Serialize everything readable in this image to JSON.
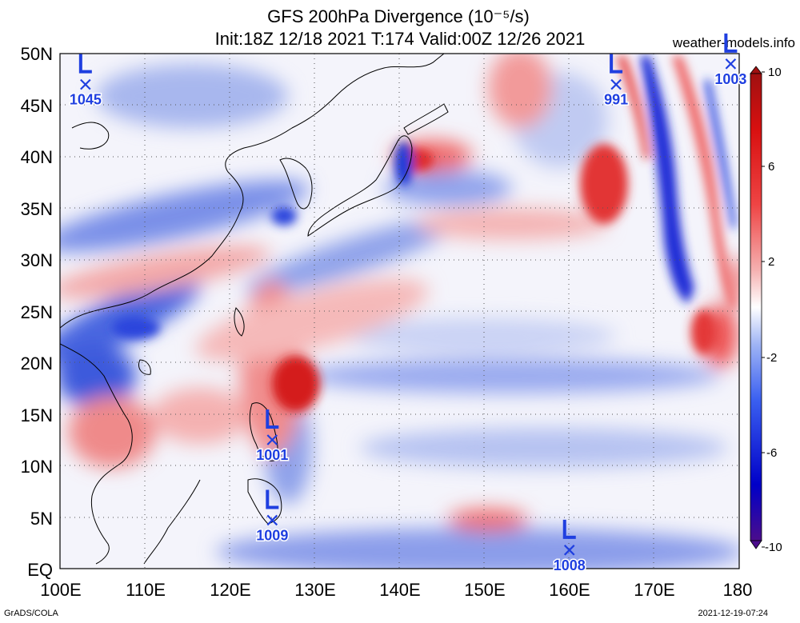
{
  "header": {
    "title_line1": "GFS 200hPa Divergence (10⁻⁵/s)",
    "title_line2": "Init:18Z 12/18 2021 T:174 Valid:00Z 12/26 2021",
    "site": "weather-models.info"
  },
  "footer": {
    "left": "GrADS/COLA",
    "right": "2021-12-19-07:24"
  },
  "map": {
    "lat_labels": [
      "50N",
      "45N",
      "40N",
      "35N",
      "30N",
      "25N",
      "20N",
      "15N",
      "10N",
      "5N",
      "EQ"
    ],
    "lon_labels": [
      "100E",
      "110E",
      "120E",
      "130E",
      "140E",
      "150E",
      "160E",
      "170E",
      "180"
    ]
  },
  "colorbar": {
    "labels": [
      "10",
      "6",
      "2",
      "-2",
      "-6",
      "-10"
    ],
    "colors": [
      "#4b0d8c",
      "#0000c8",
      "#3a5ff0",
      "#9fb4f5",
      "#e6eafc",
      "#ffffff",
      "#fde4e4",
      "#f5a0a0",
      "#ee4444",
      "#d81010",
      "#a01010"
    ]
  },
  "lows": [
    {
      "pressure": "1045",
      "lon": 103,
      "lat": 47
    },
    {
      "pressure": "991",
      "lon": 165.5,
      "lat": 47
    },
    {
      "pressure": "1003",
      "lon": 179,
      "lat": 49
    },
    {
      "pressure": "1001",
      "lon": 125,
      "lat": 12.5
    },
    {
      "pressure": "1009",
      "lon": 125,
      "lat": 4.7
    },
    {
      "pressure": "1008",
      "lon": 160,
      "lat": 1.8
    }
  ]
}
